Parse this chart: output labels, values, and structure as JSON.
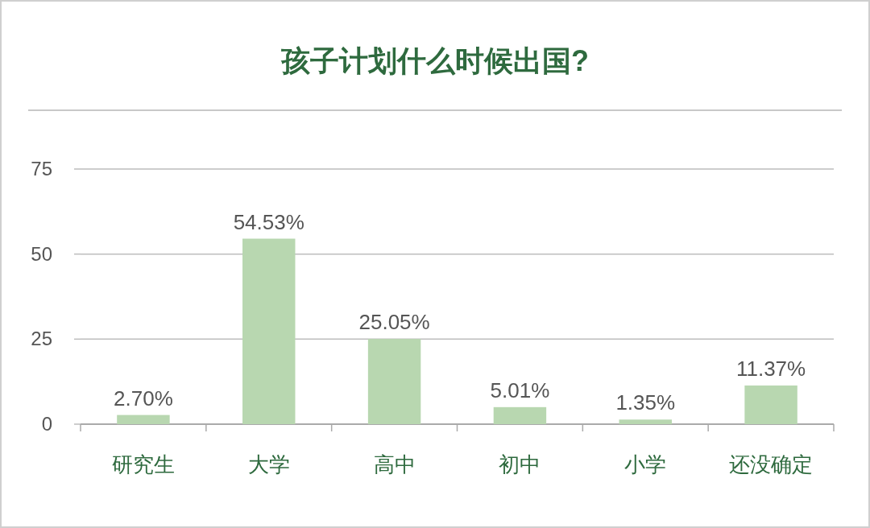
{
  "chart_data": {
    "type": "bar",
    "title": "孩子计划什么时候出国?",
    "categories": [
      "研究生",
      "大学",
      "高中",
      "初中",
      "小学",
      "还没确定"
    ],
    "values": [
      2.7,
      54.53,
      25.05,
      5.01,
      1.35,
      11.37
    ],
    "value_labels": [
      "2.70%",
      "54.53%",
      "25.05%",
      "5.01%",
      "1.35%",
      "11.37%"
    ],
    "color": "#b8d7b0",
    "ylim": [
      0,
      75
    ],
    "yticks": [
      0,
      25,
      50,
      75
    ],
    "grid": "y"
  }
}
